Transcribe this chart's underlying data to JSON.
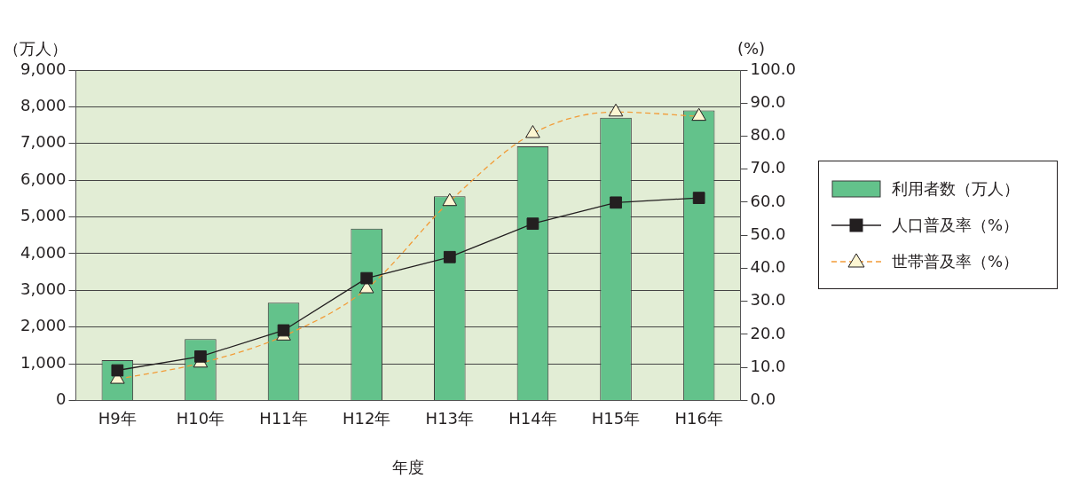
{
  "chart_data": {
    "type": "bar",
    "xlabel": "年度",
    "ylabel": "（万人）",
    "y2label": "(%)",
    "categories": [
      "H9年",
      "H10年",
      "H11年",
      "H12年",
      "H13年",
      "H14年",
      "H15年",
      "H16年"
    ],
    "series": [
      {
        "name": "利用者数（万人）",
        "color": "#63c28b",
        "values": [
          1100,
          1670,
          2660,
          4680,
          5560,
          6920,
          7700,
          7900
        ]
      },
      {
        "name": "人口普及率（%）",
        "type": "line",
        "axis": "y2",
        "color": "#231f20",
        "marker": "square",
        "line_style": "solid",
        "values": [
          9.1,
          13.3,
          21.2,
          37.0,
          43.4,
          53.5,
          59.9,
          61.3
        ]
      },
      {
        "name": "世帯普及率（%）",
        "type": "line",
        "axis": "y2",
        "color": "#f29c38",
        "marker": "triangle",
        "line_style": "dashed",
        "values": [
          6.4,
          11.3,
          19.5,
          33.8,
          60.2,
          80.8,
          87.3,
          86.0
        ]
      }
    ],
    "ylim": [
      0,
      9000
    ],
    "yticks": [
      {
        "value": 0,
        "label": "0"
      },
      {
        "value": 1000,
        "label": "1,000"
      },
      {
        "value": 2000,
        "label": "2,000"
      },
      {
        "value": 3000,
        "label": "3,000"
      },
      {
        "value": 4000,
        "label": "4,000"
      },
      {
        "value": 5000,
        "label": "5,000"
      },
      {
        "value": 6000,
        "label": "6,000"
      },
      {
        "value": 7000,
        "label": "7,000"
      },
      {
        "value": 8000,
        "label": "8,000"
      },
      {
        "value": 9000,
        "label": "9,000"
      }
    ],
    "y2lim": [
      0,
      100
    ],
    "y2ticks": [
      {
        "value": 0,
        "label": "0.0"
      },
      {
        "value": 10,
        "label": "10.0"
      },
      {
        "value": 20,
        "label": "20.0"
      },
      {
        "value": 30,
        "label": "30.0"
      },
      {
        "value": 40,
        "label": "40.0"
      },
      {
        "value": 50,
        "label": "50.0"
      },
      {
        "value": 60,
        "label": "60.0"
      },
      {
        "value": 70,
        "label": "70.0"
      },
      {
        "value": 80,
        "label": "80.0"
      },
      {
        "value": 90,
        "label": "90.0"
      },
      {
        "value": 100,
        "label": "100.0"
      }
    ],
    "grid": "y",
    "legend": "right"
  }
}
